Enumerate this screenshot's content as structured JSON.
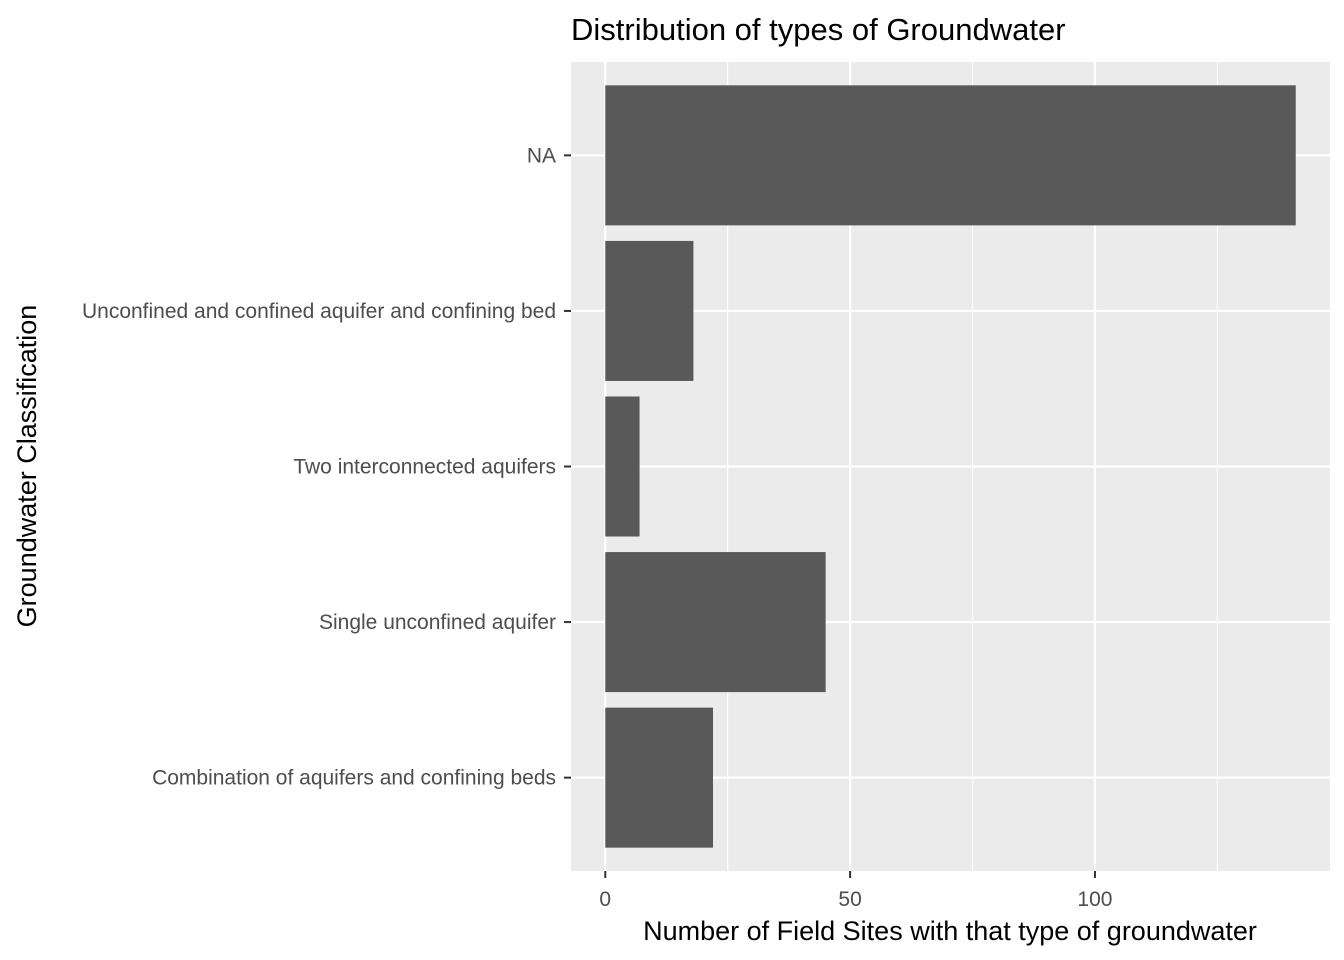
{
  "chart_data": {
    "type": "bar",
    "orientation": "horizontal",
    "title": "Distribution of types of Groundwater",
    "xlabel": "Number of Field Sites with that type of groundwater",
    "ylabel": "Groundwater Classification",
    "categories": [
      "Combination of aquifers and confining beds",
      "Single unconfined aquifer",
      "Two interconnected aquifers",
      "Unconfined and confined aquifer and confining bed",
      "NA"
    ],
    "values": [
      22,
      45,
      7,
      18,
      141
    ],
    "xlim": [
      -7,
      148
    ],
    "xticks": [
      0,
      50,
      100
    ],
    "xtick_labels": [
      "0",
      "50",
      "100"
    ],
    "grid": true,
    "colors": {
      "bar": "#595959",
      "panel_background": "#ebebeb",
      "grid": "#ffffff",
      "tick_text": "#4d4d4d",
      "tick_mark": "#333333"
    }
  }
}
